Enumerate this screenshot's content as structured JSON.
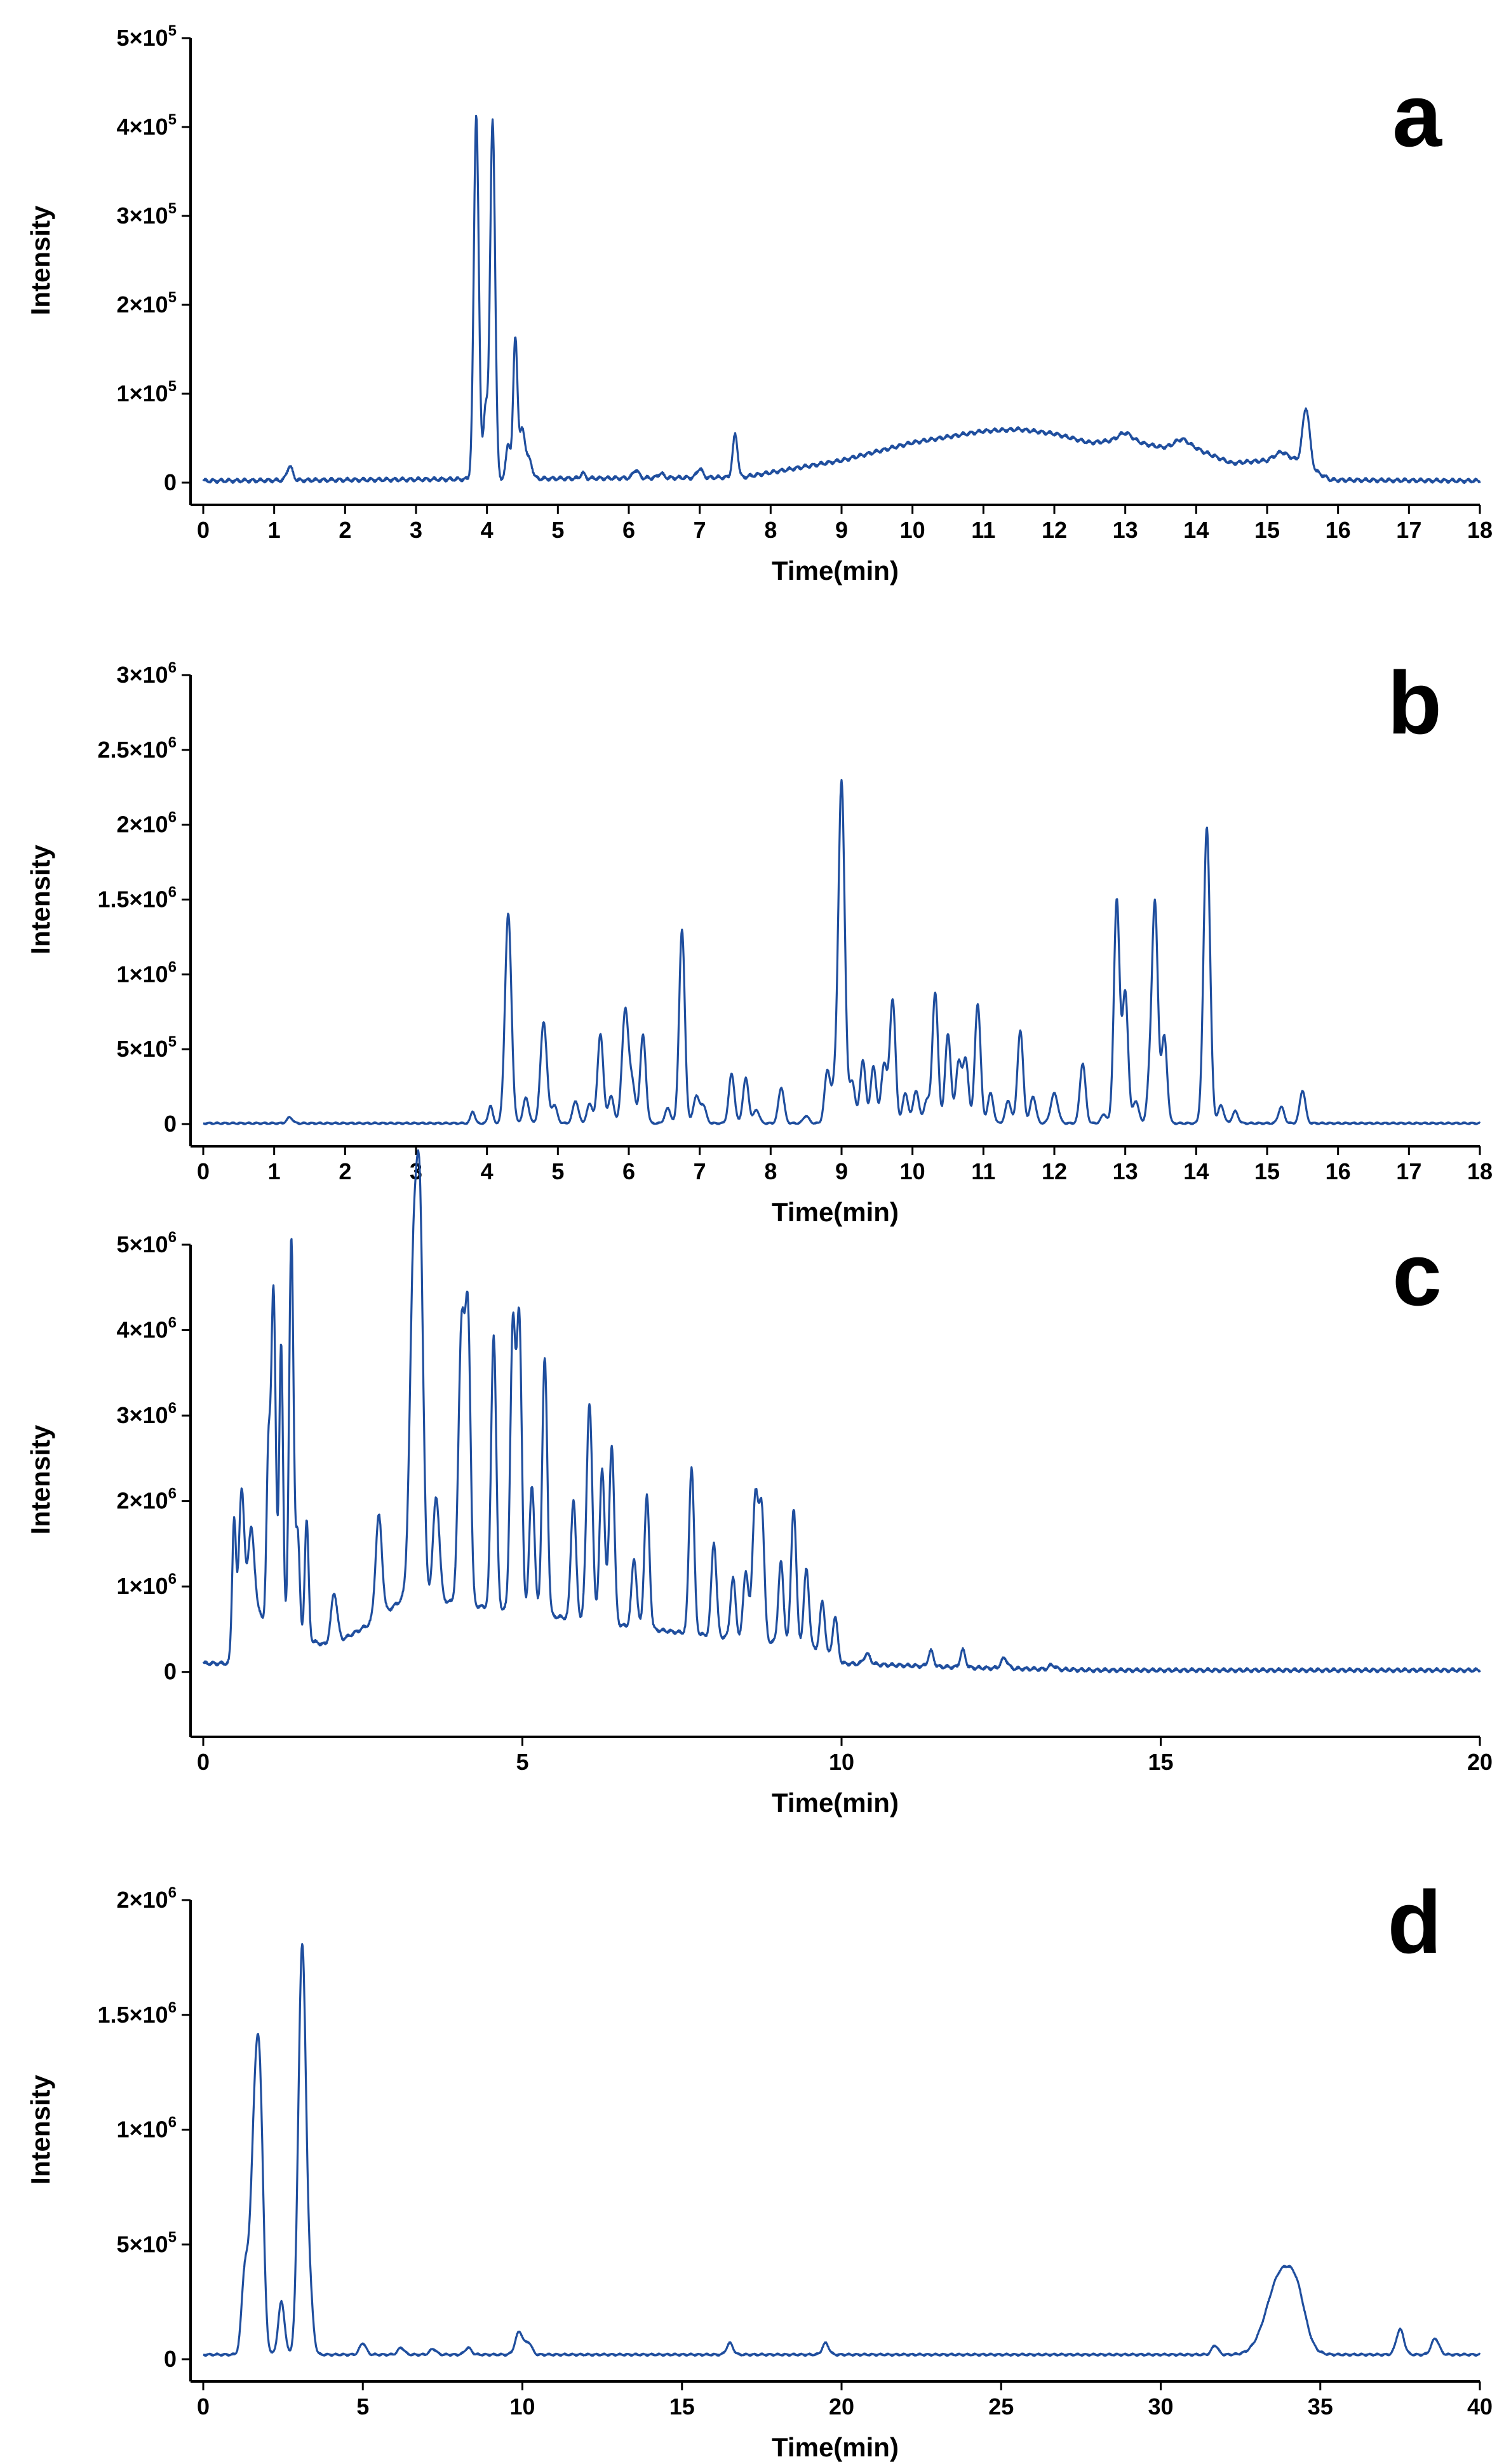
{
  "accent_color": "#1f4e9e",
  "chart_data": [
    {
      "type": "line",
      "panel": "a",
      "xlabel": "Time(min)",
      "ylabel": "Intensity",
      "xlim": [
        0,
        18
      ],
      "ylim": [
        0,
        500000
      ],
      "xticks": [
        "0",
        "1",
        "2",
        "3",
        "4",
        "5",
        "6",
        "7",
        "8",
        "9",
        "10",
        "11",
        "12",
        "13",
        "14",
        "15",
        "16",
        "17",
        "18"
      ],
      "yticks": [
        {
          "value": 0,
          "mant": "0",
          "exp": ""
        },
        {
          "value": 100000,
          "mant": "1×10",
          "exp": "5"
        },
        {
          "value": 200000,
          "mant": "2×10",
          "exp": "5"
        },
        {
          "value": 300000,
          "mant": "3×10",
          "exp": "5"
        },
        {
          "value": 400000,
          "mant": "4×10",
          "exp": "5"
        },
        {
          "value": 500000,
          "mant": "5×10",
          "exp": "5"
        }
      ],
      "baseline": [
        [
          0,
          2000
        ],
        [
          7.6,
          6000
        ],
        [
          9,
          25000
        ],
        [
          10,
          45000
        ],
        [
          11,
          58000
        ],
        [
          11.5,
          60000
        ],
        [
          12,
          55000
        ],
        [
          12.5,
          45000
        ],
        [
          13,
          48000
        ],
        [
          13.5,
          40000
        ],
        [
          14,
          38000
        ],
        [
          14.5,
          22000
        ],
        [
          15,
          25000
        ],
        [
          15.2,
          35000
        ],
        [
          15.9,
          3000
        ],
        [
          18,
          2000
        ]
      ],
      "noise": 2500,
      "peaks": [
        [
          1.22,
          16000,
          0.04
        ],
        [
          3.85,
          410000,
          0.035
        ],
        [
          4.08,
          405000,
          0.035
        ],
        [
          3.98,
          80000,
          0.03
        ],
        [
          4.3,
          40000,
          0.03
        ],
        [
          4.4,
          158000,
          0.03
        ],
        [
          4.5,
          55000,
          0.04
        ],
        [
          4.6,
          20000,
          0.04
        ],
        [
          5.35,
          6000,
          0.03
        ],
        [
          6.1,
          9000,
          0.04
        ],
        [
          6.45,
          5000,
          0.04
        ],
        [
          7.0,
          10000,
          0.04
        ],
        [
          7.5,
          48000,
          0.035
        ],
        [
          13.0,
          8000,
          0.1
        ],
        [
          13.8,
          10000,
          0.1
        ],
        [
          15.55,
          65000,
          0.05
        ]
      ]
    },
    {
      "type": "line",
      "panel": "b",
      "xlabel": "Time(min)",
      "ylabel": "Intensity",
      "xlim": [
        0,
        18
      ],
      "ylim": [
        0,
        3000000
      ],
      "xticks": [
        "0",
        "1",
        "2",
        "3",
        "4",
        "5",
        "6",
        "7",
        "8",
        "9",
        "10",
        "11",
        "12",
        "13",
        "14",
        "15",
        "16",
        "17",
        "18"
      ],
      "yticks": [
        {
          "value": 0,
          "mant": "0",
          "exp": ""
        },
        {
          "value": 500000,
          "mant": "5×10",
          "exp": "5"
        },
        {
          "value": 1000000,
          "mant": "1×10",
          "exp": "6"
        },
        {
          "value": 1500000,
          "mant": "1.5×10",
          "exp": "6"
        },
        {
          "value": 2000000,
          "mant": "2×10",
          "exp": "6"
        },
        {
          "value": 2500000,
          "mant": "2.5×10",
          "exp": "6"
        },
        {
          "value": 3000000,
          "mant": "3×10",
          "exp": "6"
        }
      ],
      "baseline": [
        [
          0,
          5000
        ],
        [
          18,
          5000
        ]
      ],
      "noise": 6000,
      "peaks": [
        [
          1.22,
          40000,
          0.04
        ],
        [
          3.8,
          80000,
          0.03
        ],
        [
          4.05,
          120000,
          0.03
        ],
        [
          4.3,
          1400000,
          0.045
        ],
        [
          4.55,
          170000,
          0.04
        ],
        [
          4.8,
          680000,
          0.045
        ],
        [
          4.95,
          120000,
          0.04
        ],
        [
          5.25,
          150000,
          0.04
        ],
        [
          5.45,
          130000,
          0.04
        ],
        [
          5.6,
          600000,
          0.04
        ],
        [
          5.75,
          180000,
          0.04
        ],
        [
          5.95,
          760000,
          0.045
        ],
        [
          6.05,
          250000,
          0.04
        ],
        [
          6.2,
          590000,
          0.04
        ],
        [
          6.55,
          100000,
          0.04
        ],
        [
          6.75,
          1290000,
          0.04
        ],
        [
          6.95,
          180000,
          0.04
        ],
        [
          7.05,
          120000,
          0.04
        ],
        [
          7.45,
          330000,
          0.04
        ],
        [
          7.65,
          300000,
          0.04
        ],
        [
          7.8,
          90000,
          0.04
        ],
        [
          8.15,
          240000,
          0.04
        ],
        [
          8.5,
          50000,
          0.04
        ],
        [
          8.8,
          350000,
          0.04
        ],
        [
          8.9,
          200000,
          0.04
        ],
        [
          9.0,
          2280000,
          0.045
        ],
        [
          9.15,
          280000,
          0.04
        ],
        [
          9.3,
          420000,
          0.04
        ],
        [
          9.45,
          380000,
          0.04
        ],
        [
          9.6,
          400000,
          0.04
        ],
        [
          9.72,
          830000,
          0.04
        ],
        [
          9.9,
          200000,
          0.04
        ],
        [
          10.05,
          220000,
          0.04
        ],
        [
          10.2,
          150000,
          0.04
        ],
        [
          10.32,
          870000,
          0.04
        ],
        [
          10.5,
          600000,
          0.04
        ],
        [
          10.65,
          400000,
          0.04
        ],
        [
          10.75,
          420000,
          0.04
        ],
        [
          10.92,
          800000,
          0.04
        ],
        [
          11.1,
          200000,
          0.04
        ],
        [
          11.35,
          150000,
          0.04
        ],
        [
          11.52,
          620000,
          0.04
        ],
        [
          11.7,
          180000,
          0.04
        ],
        [
          12.0,
          200000,
          0.05
        ],
        [
          12.4,
          400000,
          0.04
        ],
        [
          12.7,
          60000,
          0.04
        ],
        [
          12.88,
          1490000,
          0.04
        ],
        [
          13.0,
          870000,
          0.04
        ],
        [
          13.15,
          150000,
          0.04
        ],
        [
          13.35,
          300000,
          0.04
        ],
        [
          13.42,
          1420000,
          0.04
        ],
        [
          13.55,
          580000,
          0.04
        ],
        [
          14.15,
          1980000,
          0.045
        ],
        [
          14.35,
          120000,
          0.04
        ],
        [
          14.55,
          80000,
          0.04
        ],
        [
          15.2,
          110000,
          0.04
        ],
        [
          15.5,
          220000,
          0.04
        ]
      ]
    },
    {
      "type": "line",
      "panel": "c",
      "xlabel": "Time(min)",
      "ylabel": "Intensity",
      "xlim": [
        0,
        20
      ],
      "ylim": [
        -500000,
        5000000
      ],
      "xticks": [
        "0",
        "5",
        "10",
        "15",
        "20"
      ],
      "yticks": [
        {
          "value": 0,
          "mant": "0",
          "exp": ""
        },
        {
          "value": 1000000,
          "mant": "1×10",
          "exp": "6"
        },
        {
          "value": 2000000,
          "mant": "2×10",
          "exp": "6"
        },
        {
          "value": 3000000,
          "mant": "3×10",
          "exp": "6"
        },
        {
          "value": 4000000,
          "mant": "4×10",
          "exp": "6"
        },
        {
          "value": 5000000,
          "mant": "5×10",
          "exp": "6"
        }
      ],
      "baseline": [
        [
          0,
          100000
        ],
        [
          0.45,
          100000
        ],
        [
          0.5,
          400000
        ],
        [
          0.75,
          900000
        ],
        [
          1.0,
          500000
        ],
        [
          2.0,
          300000
        ],
        [
          2.7,
          600000
        ],
        [
          3.2,
          900000
        ],
        [
          4.0,
          800000
        ],
        [
          5.0,
          700000
        ],
        [
          7.0,
          500000
        ],
        [
          9.5,
          300000
        ],
        [
          10,
          100000
        ],
        [
          12,
          50000
        ],
        [
          14,
          20000
        ],
        [
          20,
          20000
        ]
      ],
      "noise": 25000,
      "peaks": [
        [
          0.48,
          1500000,
          0.03
        ],
        [
          0.6,
          1550000,
          0.04
        ],
        [
          0.75,
          800000,
          0.05
        ],
        [
          1.02,
          2000000,
          0.03
        ],
        [
          1.1,
          4000000,
          0.035
        ],
        [
          1.22,
          3400000,
          0.03
        ],
        [
          1.38,
          4650000,
          0.035
        ],
        [
          1.48,
          1200000,
          0.03
        ],
        [
          1.62,
          1400000,
          0.03
        ],
        [
          2.05,
          600000,
          0.05
        ],
        [
          2.75,
          1200000,
          0.05
        ],
        [
          3.3,
          4000000,
          0.06
        ],
        [
          3.4,
          3800000,
          0.05
        ],
        [
          3.65,
          1200000,
          0.05
        ],
        [
          4.05,
          3300000,
          0.05
        ],
        [
          4.15,
          3100000,
          0.04
        ],
        [
          4.55,
          3200000,
          0.04
        ],
        [
          4.85,
          3300000,
          0.04
        ],
        [
          4.95,
          3400000,
          0.04
        ],
        [
          5.15,
          1500000,
          0.04
        ],
        [
          5.35,
          3000000,
          0.04
        ],
        [
          5.8,
          1400000,
          0.04
        ],
        [
          6.05,
          2550000,
          0.045
        ],
        [
          6.25,
          1800000,
          0.04
        ],
        [
          6.4,
          2100000,
          0.04
        ],
        [
          6.75,
          800000,
          0.04
        ],
        [
          6.95,
          1550000,
          0.04
        ],
        [
          7.65,
          1950000,
          0.04
        ],
        [
          8.0,
          1100000,
          0.04
        ],
        [
          8.3,
          700000,
          0.04
        ],
        [
          8.5,
          800000,
          0.04
        ],
        [
          8.65,
          1700000,
          0.045
        ],
        [
          8.75,
          1500000,
          0.04
        ],
        [
          9.05,
          950000,
          0.04
        ],
        [
          9.25,
          1600000,
          0.04
        ],
        [
          9.45,
          900000,
          0.04
        ],
        [
          9.7,
          600000,
          0.04
        ],
        [
          9.9,
          500000,
          0.04
        ],
        [
          10.4,
          120000,
          0.05
        ],
        [
          11.4,
          180000,
          0.04
        ],
        [
          11.9,
          200000,
          0.04
        ],
        [
          12.55,
          120000,
          0.05
        ],
        [
          13.3,
          50000,
          0.05
        ]
      ]
    },
    {
      "type": "line",
      "panel": "d",
      "xlabel": "Time(min)",
      "ylabel": "Intensity",
      "xlim": [
        0,
        40
      ],
      "ylim": [
        0,
        2000000
      ],
      "xticks": [
        "0",
        "5",
        "10",
        "15",
        "20",
        "25",
        "30",
        "35",
        "40"
      ],
      "yticks": [
        {
          "value": 0,
          "mant": "0",
          "exp": ""
        },
        {
          "value": 500000,
          "mant": "5×10",
          "exp": "5"
        },
        {
          "value": 1000000,
          "mant": "1×10",
          "exp": "6"
        },
        {
          "value": 1500000,
          "mant": "1.5×10",
          "exp": "6"
        },
        {
          "value": 2000000,
          "mant": "2×10",
          "exp": "6"
        }
      ],
      "baseline": [
        [
          0,
          20000
        ],
        [
          40,
          20000
        ]
      ],
      "noise": 5000,
      "peaks": [
        [
          1.3,
          330000,
          0.1
        ],
        [
          1.65,
          1150000,
          0.15
        ],
        [
          1.8,
          500000,
          0.1
        ],
        [
          2.45,
          230000,
          0.1
        ],
        [
          3.1,
          1780000,
          0.12
        ],
        [
          3.35,
          200000,
          0.1
        ],
        [
          5.0,
          50000,
          0.1
        ],
        [
          6.2,
          30000,
          0.1
        ],
        [
          7.2,
          25000,
          0.1
        ],
        [
          8.3,
          30000,
          0.1
        ],
        [
          9.9,
          100000,
          0.12
        ],
        [
          10.2,
          50000,
          0.1
        ],
        [
          16.5,
          50000,
          0.1
        ],
        [
          19.5,
          50000,
          0.1
        ],
        [
          31.7,
          40000,
          0.1
        ],
        [
          33.8,
          360000,
          0.45
        ],
        [
          34.3,
          120000,
          0.25
        ],
        [
          37.5,
          110000,
          0.12
        ],
        [
          38.6,
          70000,
          0.12
        ]
      ]
    }
  ]
}
